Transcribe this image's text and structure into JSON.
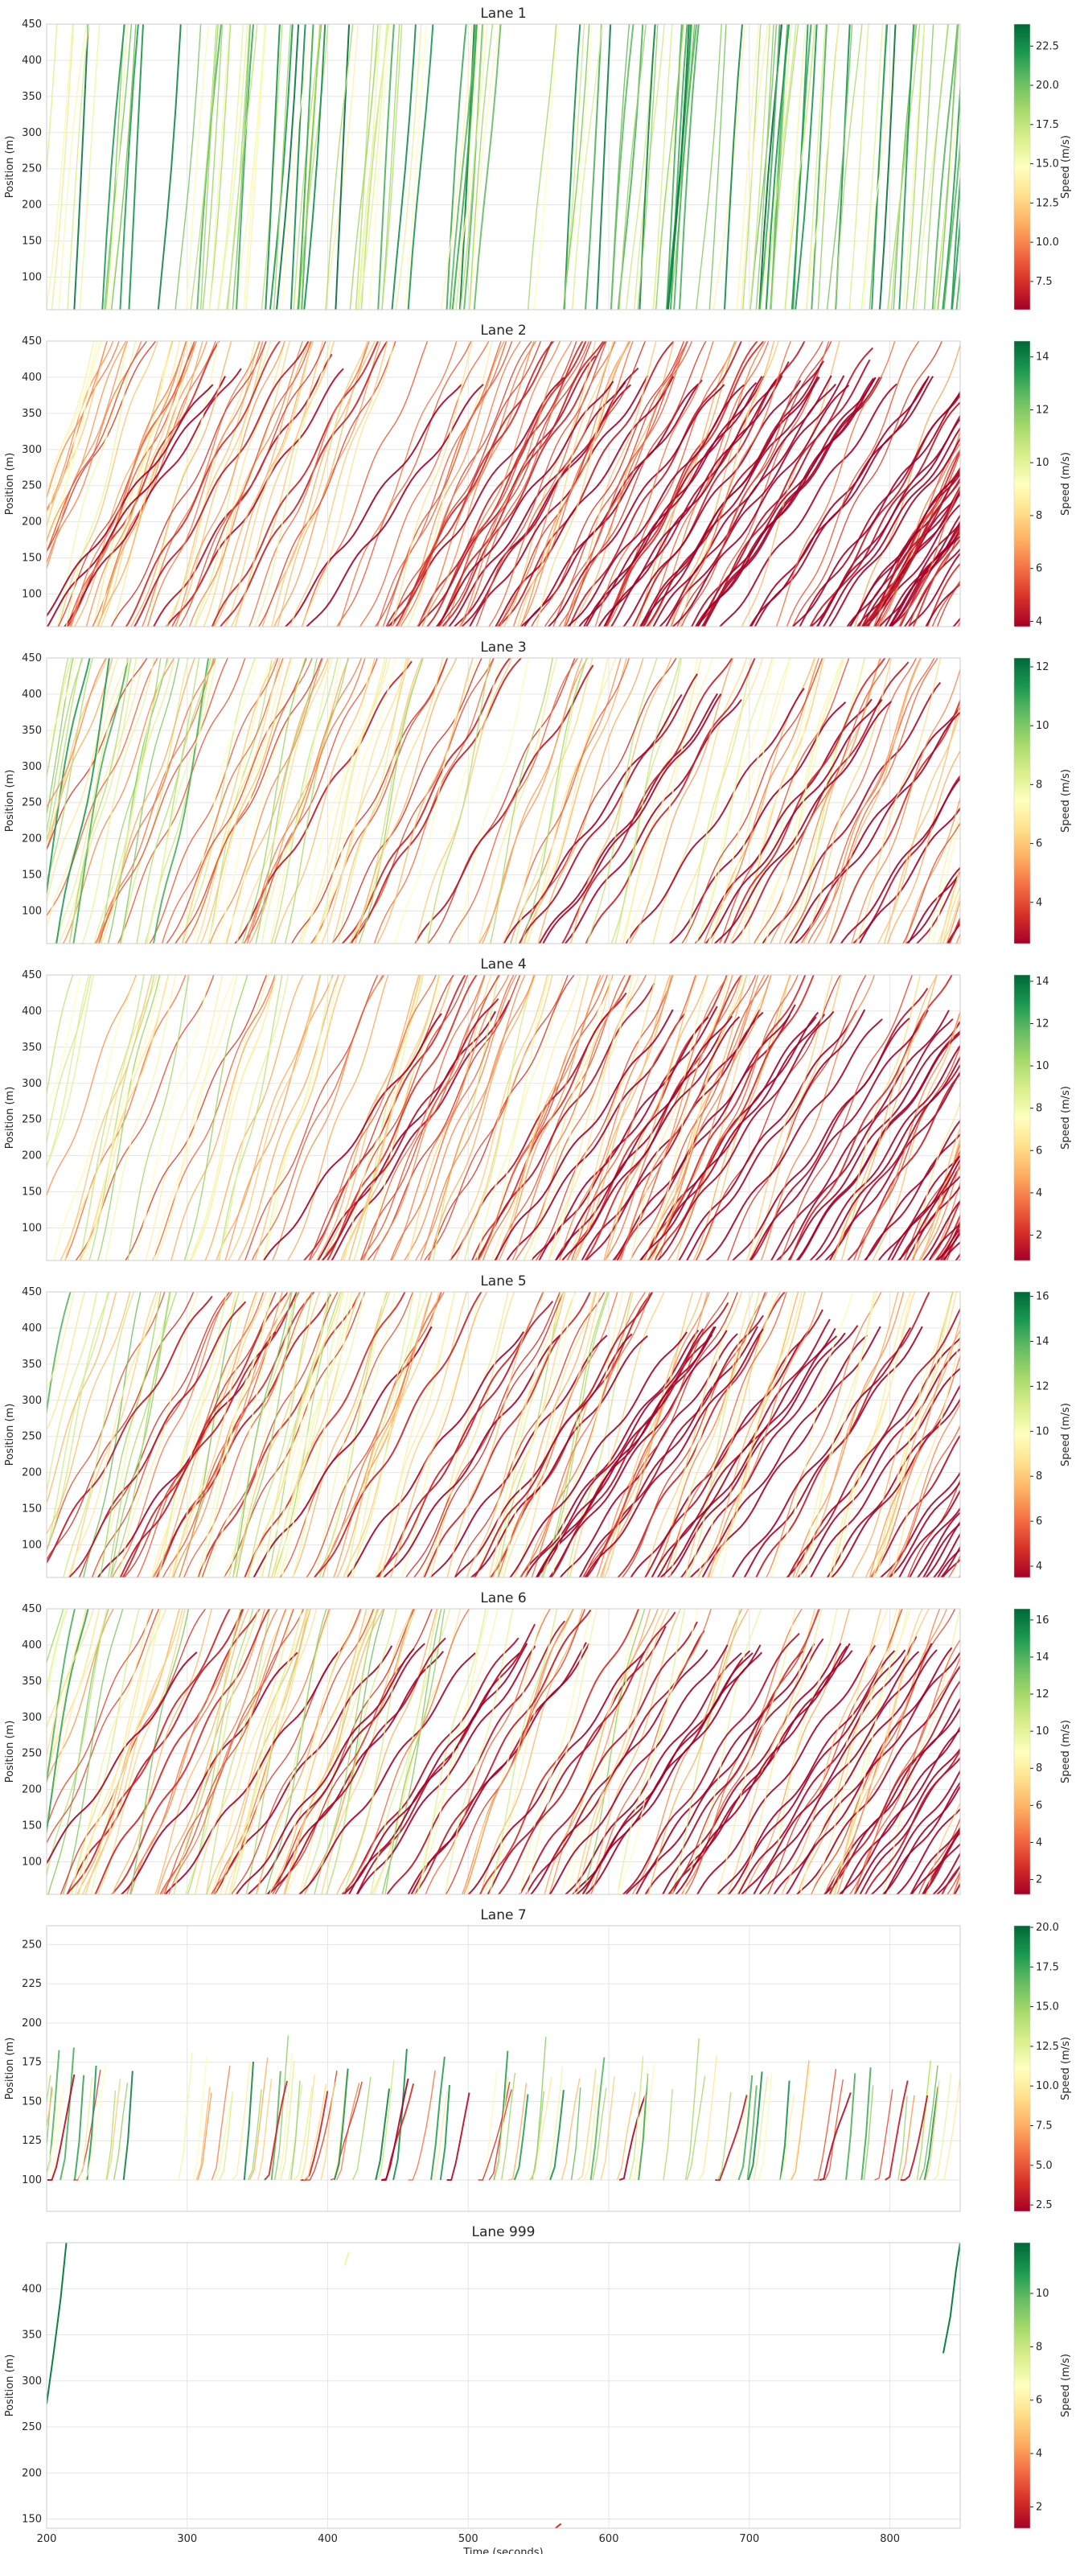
{
  "figure": {
    "xlabel": "Time (seconds)",
    "ylabel": "Position (m)",
    "colorbar_label": "Speed (m/s)",
    "colormap": [
      "#a50026",
      "#d73027",
      "#f46d43",
      "#fdae61",
      "#fee08b",
      "#ffffbf",
      "#d9ef8b",
      "#a6d96a",
      "#66bd63",
      "#1a9850",
      "#006837"
    ]
  },
  "chart_data": [
    {
      "type": "line",
      "title": "Lane 1",
      "xlim": [
        200,
        850
      ],
      "ylim": [
        55,
        450
      ],
      "xticks": [],
      "xtick_labels": [],
      "yticks": [
        100,
        150,
        200,
        250,
        300,
        350,
        400,
        450
      ],
      "ytick_labels": [
        "100",
        "150",
        "200",
        "250",
        "300",
        "350",
        "400",
        "450"
      ],
      "colorbar": {
        "range": [
          5.7,
          23.9
        ],
        "ticks": [
          7.5,
          10.0,
          12.5,
          15.0,
          17.5,
          20.0,
          22.5
        ],
        "tick_labels": [
          "7.5",
          "10.0",
          "12.5",
          "15.0",
          "17.5",
          "20.0",
          "22.5"
        ]
      }
    },
    {
      "type": "line",
      "title": "Lane 2",
      "xlim": [
        200,
        850
      ],
      "ylim": [
        55,
        450
      ],
      "xticks": [],
      "xtick_labels": [],
      "yticks": [
        100,
        150,
        200,
        250,
        300,
        350,
        400,
        450
      ],
      "ytick_labels": [
        "100",
        "150",
        "200",
        "250",
        "300",
        "350",
        "400",
        "450"
      ],
      "colorbar": {
        "range": [
          3.8,
          14.6
        ],
        "ticks": [
          4,
          6,
          8,
          10,
          12,
          14
        ],
        "tick_labels": [
          "4",
          "6",
          "8",
          "10",
          "12",
          "14"
        ]
      }
    },
    {
      "type": "line",
      "title": "Lane 3",
      "xlim": [
        200,
        850
      ],
      "ylim": [
        55,
        450
      ],
      "xticks": [],
      "xtick_labels": [],
      "yticks": [
        100,
        150,
        200,
        250,
        300,
        350,
        400,
        450
      ],
      "ytick_labels": [
        "100",
        "150",
        "200",
        "250",
        "300",
        "350",
        "400",
        "450"
      ],
      "colorbar": {
        "range": [
          2.6,
          12.3
        ],
        "ticks": [
          4,
          6,
          8,
          10,
          12
        ],
        "tick_labels": [
          "4",
          "6",
          "8",
          "10",
          "12"
        ]
      }
    },
    {
      "type": "line",
      "title": "Lane 4",
      "xlim": [
        200,
        850
      ],
      "ylim": [
        55,
        450
      ],
      "xticks": [],
      "xtick_labels": [],
      "yticks": [
        100,
        150,
        200,
        250,
        300,
        350,
        400,
        450
      ],
      "ytick_labels": [
        "100",
        "150",
        "200",
        "250",
        "300",
        "350",
        "400",
        "450"
      ],
      "colorbar": {
        "range": [
          0.8,
          14.3
        ],
        "ticks": [
          2,
          4,
          6,
          8,
          10,
          12,
          14
        ],
        "tick_labels": [
          "2",
          "4",
          "6",
          "8",
          "10",
          "12",
          "14"
        ]
      }
    },
    {
      "type": "line",
      "title": "Lane 5",
      "xlim": [
        200,
        850
      ],
      "ylim": [
        55,
        450
      ],
      "xticks": [],
      "xtick_labels": [],
      "yticks": [
        100,
        150,
        200,
        250,
        300,
        350,
        400,
        450
      ],
      "ytick_labels": [
        "100",
        "150",
        "200",
        "250",
        "300",
        "350",
        "400",
        "450"
      ],
      "colorbar": {
        "range": [
          3.5,
          16.2
        ],
        "ticks": [
          4,
          6,
          8,
          10,
          12,
          14,
          16
        ],
        "tick_labels": [
          "4",
          "6",
          "8",
          "10",
          "12",
          "14",
          "16"
        ]
      }
    },
    {
      "type": "line",
      "title": "Lane 6",
      "xlim": [
        200,
        850
      ],
      "ylim": [
        55,
        450
      ],
      "xticks": [],
      "xtick_labels": [],
      "yticks": [
        100,
        150,
        200,
        250,
        300,
        350,
        400,
        450
      ],
      "ytick_labels": [
        "100",
        "150",
        "200",
        "250",
        "300",
        "350",
        "400",
        "450"
      ],
      "colorbar": {
        "range": [
          1.2,
          16.6
        ],
        "ticks": [
          2,
          4,
          6,
          8,
          10,
          12,
          14,
          16
        ],
        "tick_labels": [
          "2",
          "4",
          "6",
          "8",
          "10",
          "12",
          "14",
          "16"
        ]
      }
    },
    {
      "type": "line",
      "title": "Lane 7",
      "xlim": [
        200,
        850
      ],
      "ylim": [
        80,
        262
      ],
      "xticks": [],
      "xtick_labels": [],
      "yticks": [
        100,
        125,
        150,
        175,
        200,
        225,
        250
      ],
      "ytick_labels": [
        "100",
        "125",
        "150",
        "175",
        "200",
        "225",
        "250"
      ],
      "colorbar": {
        "range": [
          2.1,
          20.1
        ],
        "ticks": [
          2.5,
          5.0,
          7.5,
          10.0,
          12.5,
          15.0,
          17.5,
          20.0
        ],
        "tick_labels": [
          "2.5",
          "5.0",
          "7.5",
          "10.0",
          "12.5",
          "15.0",
          "17.5",
          "20.0"
        ]
      }
    },
    {
      "type": "line",
      "title": "Lane 999",
      "xlim": [
        200,
        850
      ],
      "ylim": [
        140,
        450
      ],
      "xticks": [
        200,
        300,
        400,
        500,
        600,
        700,
        800
      ],
      "xtick_labels": [
        "200",
        "300",
        "400",
        "500",
        "600",
        "700",
        "800"
      ],
      "yticks": [
        150,
        200,
        250,
        300,
        350,
        400
      ],
      "ytick_labels": [
        "150",
        "200",
        "250",
        "300",
        "350",
        "400"
      ],
      "colorbar": {
        "range": [
          1.2,
          11.9
        ],
        "ticks": [
          2,
          4,
          6,
          8,
          10
        ],
        "tick_labels": [
          "2",
          "4",
          "6",
          "8",
          "10"
        ]
      }
    }
  ]
}
